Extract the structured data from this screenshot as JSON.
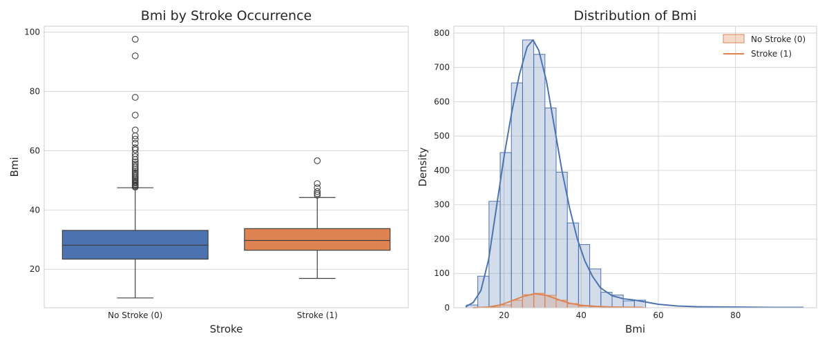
{
  "chart_data": [
    {
      "type": "box",
      "title": "Bmi by Stroke Occurrence",
      "xlabel": "Stroke",
      "ylabel": "Bmi",
      "ylim": [
        7,
        102
      ],
      "yticks": [
        20,
        40,
        60,
        80,
        100
      ],
      "grid": true,
      "categories": [
        "No Stroke (0)",
        "Stroke (1)"
      ],
      "colors": [
        "#4c72b0",
        "#dd8452"
      ],
      "boxes": [
        {
          "category": "No Stroke (0)",
          "whisker_low": 10.3,
          "q1": 23.4,
          "median": 28.1,
          "q3": 33.1,
          "whisker_high": 47.5,
          "outliers": [
            47.7,
            48.0,
            48.3,
            48.6,
            49.0,
            49.3,
            49.7,
            50.1,
            50.5,
            51.0,
            51.5,
            52.0,
            52.5,
            53.0,
            53.6,
            54.2,
            54.8,
            55.5,
            56.2,
            57.0,
            58.0,
            59.0,
            60.3,
            61.0,
            62.5,
            63.9,
            65.0,
            67.0,
            72.0,
            78.0,
            92.0,
            97.6
          ]
        },
        {
          "category": "Stroke (1)",
          "whisker_low": 16.9,
          "q1": 26.4,
          "median": 29.7,
          "q3": 33.7,
          "whisker_high": 44.2,
          "outliers": [
            45.0,
            45.5,
            46.2,
            47.5,
            48.9,
            56.6
          ]
        }
      ]
    },
    {
      "type": "histogram",
      "title": "Distribution of Bmi",
      "xlabel": "Bmi",
      "ylabel": "Density",
      "xlim": [
        7,
        101
      ],
      "ylim": [
        0,
        820
      ],
      "xticks": [
        20,
        40,
        60,
        80
      ],
      "yticks": [
        0,
        100,
        200,
        300,
        400,
        500,
        600,
        700,
        800
      ],
      "grid": true,
      "legend_position": "top-right",
      "bin_edges": [
        10.3,
        13.2,
        16.1,
        19.0,
        21.9,
        24.8,
        27.7,
        30.6,
        33.5,
        36.4,
        39.3,
        42.2,
        45.1,
        48.0,
        50.9,
        53.8,
        56.7
      ],
      "series": [
        {
          "name": "No Stroke (0)",
          "color": "#4c72b0",
          "counts": [
            8,
            92,
            310,
            452,
            655,
            780,
            738,
            582,
            395,
            247,
            184,
            113,
            45,
            37,
            20,
            22
          ],
          "kde": [
            [
              10,
              3
            ],
            [
              12,
              15
            ],
            [
              14,
              50
            ],
            [
              16,
              140
            ],
            [
              18,
              290
            ],
            [
              20,
              440
            ],
            [
              22,
              570
            ],
            [
              24,
              680
            ],
            [
              26,
              760
            ],
            [
              27.5,
              780
            ],
            [
              29,
              750
            ],
            [
              31,
              660
            ],
            [
              33,
              530
            ],
            [
              35,
              400
            ],
            [
              37,
              290
            ],
            [
              39,
              200
            ],
            [
              41,
              135
            ],
            [
              43,
              90
            ],
            [
              45,
              58
            ],
            [
              48,
              35
            ],
            [
              51,
              26
            ],
            [
              54,
              22
            ],
            [
              56,
              18
            ],
            [
              60,
              10
            ],
            [
              65,
              5
            ],
            [
              70,
              3
            ],
            [
              80,
              2
            ],
            [
              90,
              1
            ],
            [
              97.6,
              1
            ]
          ]
        },
        {
          "name": "Stroke (1)",
          "color": "#dd8452",
          "counts": [
            0,
            0,
            2,
            8,
            22,
            38,
            42,
            36,
            22,
            12,
            5,
            3,
            2,
            1,
            0,
            1
          ],
          "kde": [
            [
              12,
              0
            ],
            [
              16,
              2
            ],
            [
              19,
              8
            ],
            [
              22,
              20
            ],
            [
              25,
              33
            ],
            [
              28,
              41
            ],
            [
              31,
              36
            ],
            [
              34,
              24
            ],
            [
              37,
              13
            ],
            [
              40,
              7
            ],
            [
              44,
              4
            ],
            [
              48,
              2
            ],
            [
              56,
              1
            ]
          ]
        }
      ]
    }
  ]
}
